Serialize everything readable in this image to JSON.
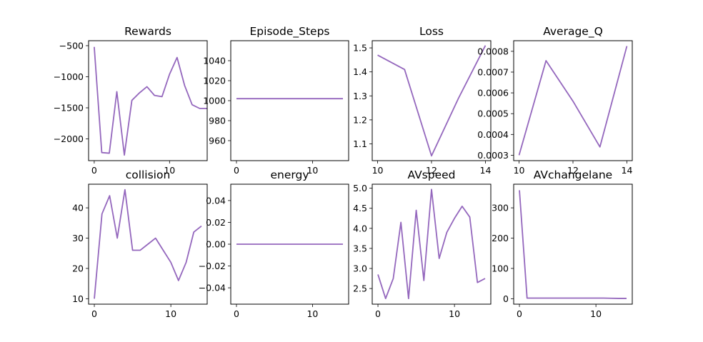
{
  "figure": {
    "series_color": "#9467bd"
  },
  "chart_data": [
    {
      "type": "line",
      "title": "Rewards",
      "x": [
        0,
        1,
        2,
        3,
        4,
        5,
        6,
        7,
        8,
        9,
        10,
        11,
        12,
        13,
        14,
        15
      ],
      "values": [
        -520,
        -2220,
        -2230,
        -1240,
        -2260,
        -1380,
        -1260,
        -1160,
        -1300,
        -1320,
        -960,
        -690,
        -1140,
        -1450,
        -1510,
        -1510
      ],
      "xlim": [
        -0.75,
        15
      ],
      "ylim": [
        -2350,
        -420
      ],
      "xticks": [
        0,
        10
      ],
      "yticks": [
        -500,
        -1000,
        -1500,
        -2000
      ],
      "xtick_labels": [
        "0",
        "10"
      ],
      "ytick_labels": [
        "−500",
        "−1000",
        "−1500",
        "−2000"
      ]
    },
    {
      "type": "line",
      "title": "Episode_Steps",
      "x": [
        0,
        1,
        2,
        3,
        4,
        5,
        6,
        7,
        8,
        9,
        10,
        11,
        12,
        13,
        14
      ],
      "values": [
        1002,
        1002,
        1002,
        1002,
        1002,
        1002,
        1002,
        1002,
        1002,
        1002,
        1002,
        1002,
        1002,
        1002,
        1002
      ],
      "xlim": [
        -0.75,
        14.75
      ],
      "ylim": [
        940,
        1060
      ],
      "xticks": [
        0,
        10
      ],
      "yticks": [
        1040,
        1020,
        1000,
        980,
        960
      ],
      "xtick_labels": [
        "0",
        "10"
      ],
      "ytick_labels": [
        "1040",
        "1020",
        "1000",
        "980",
        "960"
      ]
    },
    {
      "type": "line",
      "title": "Loss",
      "x": [
        10,
        11,
        12,
        13,
        14
      ],
      "values": [
        1.47,
        1.41,
        1.05,
        1.29,
        1.51
      ],
      "xlim": [
        9.8,
        14.2
      ],
      "ylim": [
        1.03,
        1.53
      ],
      "xticks": [
        10,
        12,
        14
      ],
      "yticks": [
        1.5,
        1.4,
        1.3,
        1.2,
        1.1
      ],
      "xtick_labels": [
        "10",
        "12",
        "14"
      ],
      "ytick_labels": [
        "1.5",
        "1.4",
        "1.3",
        "1.2",
        "1.1"
      ]
    },
    {
      "type": "line",
      "title": "Average_Q",
      "x": [
        10,
        11,
        12,
        13,
        14
      ],
      "values": [
        0.0003,
        0.000755,
        0.00056,
        0.00034,
        0.000825
      ],
      "xlim": [
        9.8,
        14.2
      ],
      "ylim": [
        0.000274,
        0.000851
      ],
      "xticks": [
        10,
        12,
        14
      ],
      "yticks": [
        0.0008,
        0.0007,
        0.0006,
        0.0005,
        0.0004,
        0.0003
      ],
      "xtick_labels": [
        "10",
        "12",
        "14"
      ],
      "ytick_labels": [
        "0.0008",
        "0.0007",
        "0.0006",
        "0.0005",
        "0.0004",
        "0.0003"
      ]
    },
    {
      "type": "line",
      "title": "collision",
      "x": [
        0,
        1,
        2,
        3,
        4,
        5,
        6,
        7,
        8,
        9,
        10,
        11,
        12,
        13,
        14
      ],
      "values": [
        10,
        38,
        44,
        30,
        46,
        26,
        26,
        28,
        30,
        26,
        22,
        16,
        22,
        32,
        34
      ],
      "xlim": [
        -0.75,
        14.75
      ],
      "ylim": [
        8.2,
        47.8
      ],
      "xticks": [
        0,
        10
      ],
      "yticks": [
        40,
        30,
        20,
        10
      ],
      "xtick_labels": [
        "0",
        "10"
      ],
      "ytick_labels": [
        "40",
        "30",
        "20",
        "10"
      ]
    },
    {
      "type": "line",
      "title": "energy",
      "x": [
        0,
        1,
        2,
        3,
        4,
        5,
        6,
        7,
        8,
        9,
        10,
        11,
        12,
        13,
        14
      ],
      "values": [
        0,
        0,
        0,
        0,
        0,
        0,
        0,
        0,
        0,
        0,
        0,
        0,
        0,
        0,
        0
      ],
      "xlim": [
        -0.75,
        14.75
      ],
      "ylim": [
        -0.055,
        0.055
      ],
      "xticks": [
        0,
        10
      ],
      "yticks": [
        0.04,
        0.02,
        0.0,
        -0.02,
        -0.04
      ],
      "xtick_labels": [
        "0",
        "10"
      ],
      "ytick_labels": [
        "0.04",
        "0.02",
        "0.00",
        "−0.02",
        "−0.04"
      ]
    },
    {
      "type": "line",
      "title": "AVspeed",
      "x": [
        0,
        1,
        2,
        3,
        4,
        5,
        6,
        7,
        8,
        9,
        10,
        11,
        12,
        13,
        14
      ],
      "values": [
        2.85,
        2.25,
        2.75,
        4.15,
        2.25,
        4.45,
        2.7,
        4.97,
        3.25,
        3.9,
        4.25,
        4.55,
        4.28,
        2.65,
        2.75
      ],
      "xlim": [
        -0.75,
        14.75
      ],
      "ylim": [
        2.11,
        5.1
      ],
      "xticks": [
        0,
        10
      ],
      "yticks": [
        5.0,
        4.5,
        4.0,
        3.5,
        3.0,
        2.5
      ],
      "xtick_labels": [
        "0",
        "10"
      ],
      "ytick_labels": [
        "5.0",
        "4.5",
        "4.0",
        "3.5",
        "3.0",
        "2.5"
      ]
    },
    {
      "type": "line",
      "title": "AVchangelane",
      "x": [
        0,
        1,
        2,
        3,
        4,
        5,
        6,
        7,
        8,
        9,
        10,
        11,
        12,
        13,
        14
      ],
      "values": [
        358,
        2,
        2,
        2,
        2,
        2,
        2,
        2,
        2,
        2,
        2,
        2,
        1.5,
        1,
        1
      ],
      "xlim": [
        -0.75,
        14.75
      ],
      "ylim": [
        -18,
        378
      ],
      "xticks": [
        0,
        10
      ],
      "yticks": [
        300,
        200,
        100,
        0
      ],
      "xtick_labels": [
        "0",
        "10"
      ],
      "ytick_labels": [
        "300",
        "200",
        "100",
        "0"
      ]
    }
  ]
}
